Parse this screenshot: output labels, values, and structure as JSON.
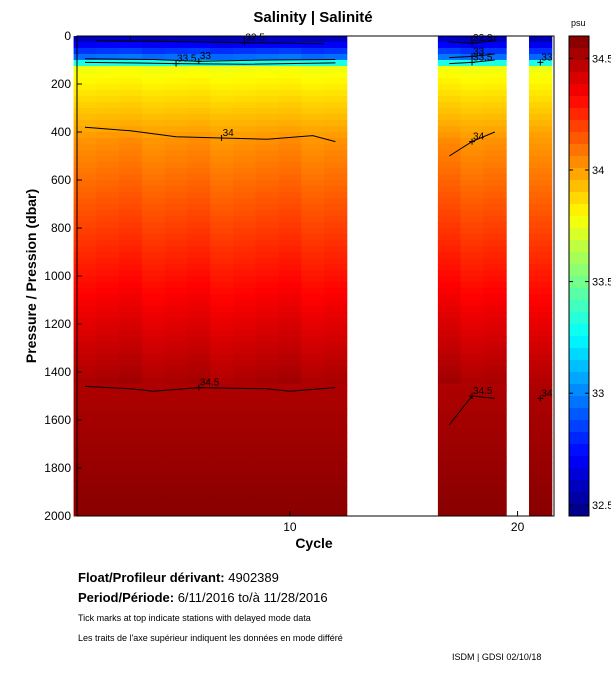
{
  "chart_data": {
    "type": "heatmap",
    "title": "Salinity | Salinité",
    "xlabel": "Cycle",
    "ylabel": "Pressure / Pression (dbar)",
    "xlim": [
      0.65,
      21.6
    ],
    "ylim": [
      2000,
      0
    ],
    "xticks": [
      10,
      20
    ],
    "yticks": [
      0,
      200,
      400,
      600,
      800,
      1000,
      1200,
      1400,
      1600,
      1800,
      2000
    ],
    "cycles_with_data": [
      1,
      2,
      3,
      4,
      5,
      6,
      7,
      8,
      9,
      10,
      11,
      12,
      17,
      18,
      19,
      21
    ],
    "colorbar": {
      "unit": "psu",
      "range": [
        32.45,
        34.6
      ],
      "ticks": [
        32.5,
        33,
        33.5,
        34,
        34.5
      ],
      "tick_labels": [
        "32.5",
        "33",
        "33.5",
        "34",
        "34.5"
      ]
    },
    "contours": [
      {
        "level": 32.5,
        "label": "32.5",
        "points": [
          [
            1.5,
            20
          ],
          [
            4,
            22
          ],
          [
            6,
            25
          ],
          [
            8,
            28
          ],
          [
            10,
            30
          ],
          [
            11.5,
            32
          ]
        ]
      },
      {
        "level": 33,
        "label": "33",
        "points": [
          [
            1,
            95
          ],
          [
            4,
            98
          ],
          [
            6,
            105
          ],
          [
            9,
            100
          ],
          [
            12,
            98
          ]
        ]
      },
      {
        "level": 33.5,
        "label": "33.5",
        "points": [
          [
            1,
            110
          ],
          [
            3,
            112
          ],
          [
            5,
            115
          ],
          [
            8,
            118
          ],
          [
            12,
            112
          ]
        ]
      },
      {
        "level": 34,
        "label": "34",
        "points": [
          [
            1,
            380
          ],
          [
            3,
            395
          ],
          [
            5,
            420
          ],
          [
            7,
            425
          ],
          [
            9,
            430
          ],
          [
            11,
            415
          ],
          [
            12,
            440
          ]
        ]
      },
      {
        "level": 34.5,
        "label": "34.5",
        "points": [
          [
            1,
            1460
          ],
          [
            3,
            1470
          ],
          [
            4,
            1480
          ],
          [
            6,
            1465
          ],
          [
            9,
            1470
          ],
          [
            10,
            1480
          ],
          [
            12,
            1465
          ]
        ]
      },
      {
        "level": 32.8,
        "label": "32.8",
        "points": [
          [
            17,
            25
          ],
          [
            18,
            30
          ],
          [
            19,
            20
          ]
        ]
      },
      {
        "level": 33,
        "label": "33",
        "points": [
          [
            17,
            90
          ],
          [
            18,
            85
          ],
          [
            19,
            75
          ]
        ]
      },
      {
        "level": 33.5,
        "label": "33.5",
        "points": [
          [
            17,
            115
          ],
          [
            18,
            110
          ],
          [
            19,
            100
          ]
        ]
      },
      {
        "level": 34,
        "label": "34",
        "points": [
          [
            17,
            500
          ],
          [
            18,
            440
          ],
          [
            19,
            400
          ]
        ]
      },
      {
        "level": 34.5,
        "label": "34.5",
        "points": [
          [
            17,
            1620
          ],
          [
            18,
            1500
          ],
          [
            19,
            1510
          ]
        ]
      },
      {
        "level": 33,
        "label": "33",
        "points": [
          [
            21,
            110
          ]
        ]
      },
      {
        "level": 34,
        "label": "34",
        "points": [
          [
            21,
            1510
          ]
        ]
      }
    ],
    "delayed_mode_ticks": [
      3,
      8,
      18,
      19
    ]
  },
  "info": {
    "float_label": "Float/Profileur dérivant:",
    "float_value": "4902389",
    "period_label": "Period/Période:",
    "period_from": "6/11/2016",
    "period_sep": "to/à",
    "period_to": "11/28/2016",
    "note_en": "Tick marks at top indicate stations with delayed mode data",
    "note_fr": "Les traits de l'axe supérieur indiquent les données en mode différé"
  },
  "footer": "ISDM | GDSI  02/10/18"
}
